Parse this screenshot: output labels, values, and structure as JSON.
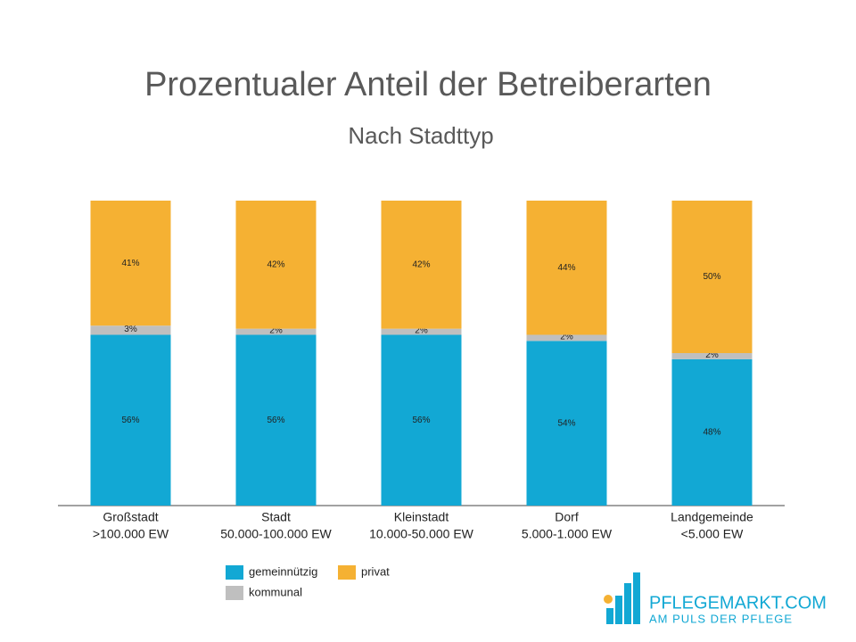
{
  "chart_data": {
    "type": "stacked-bar",
    "title": "Prozentualer Anteil der Betreiberarten",
    "subtitle": "Nach Stadttyp",
    "categories": [
      [
        "Großstadt",
        ">100.000 EW"
      ],
      [
        "Stadt",
        "50.000-100.000 EW"
      ],
      [
        "Kleinstadt",
        "10.000-50.000 EW"
      ],
      [
        "Dorf",
        "5.000-1.000 EW"
      ],
      [
        "Landgemeinde",
        "<5.000 EW"
      ]
    ],
    "series": [
      {
        "name": "gemeinnützig",
        "color": "#12a8d4",
        "values": [
          56,
          56,
          56,
          54,
          48
        ],
        "value_labels": [
          "56%",
          "56%",
          "56%",
          "54%",
          "48%"
        ]
      },
      {
        "name": "kommunal",
        "color": "#bfbfbf",
        "values": [
          3,
          2,
          2,
          2,
          2
        ],
        "value_labels": [
          "3%",
          "2%",
          "2%",
          "2%",
          "2%"
        ]
      },
      {
        "name": "privat",
        "color": "#f5b133",
        "values": [
          41,
          42,
          42,
          44,
          50
        ],
        "value_labels": [
          "41%",
          "42%",
          "42%",
          "44%",
          "50%"
        ]
      }
    ]
  },
  "logo": {
    "name": "PFLEGEMARKT.COM",
    "tagline": "AM PULS DER PFLEGE"
  }
}
